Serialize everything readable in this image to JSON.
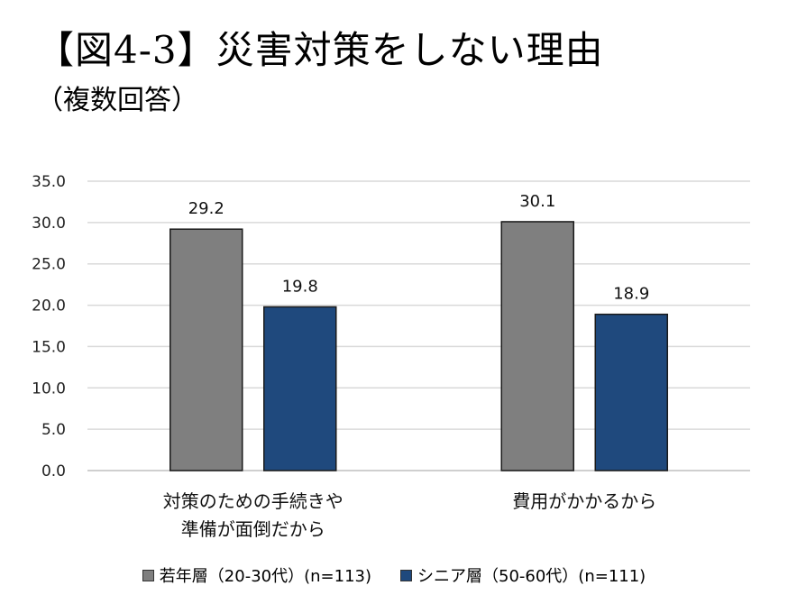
{
  "title": "【図4-3】災害対策をしない理由",
  "subtitle": "（複数回答）",
  "chart_data": {
    "type": "bar",
    "categories": [
      [
        "対策のための手続きや",
        "準備が面倒だから"
      ],
      [
        "費用がかかるから"
      ]
    ],
    "series": [
      {
        "name": "若年層（20-30代）(n=113)",
        "values": [
          29.2,
          30.1
        ],
        "color": "#7f7f7f"
      },
      {
        "name": "シニア層（50-60代）(n=111)",
        "values": [
          19.8,
          18.9
        ],
        "color": "#1f497d"
      }
    ],
    "value_labels": [
      [
        "29.2",
        "30.1"
      ],
      [
        "19.8",
        "18.9"
      ]
    ],
    "ylim": [
      0,
      35
    ],
    "yticks": [
      "0.0",
      "5.0",
      "10.0",
      "15.0",
      "20.0",
      "25.0",
      "30.0",
      "35.0"
    ],
    "grid": true,
    "legend_position": "bottom"
  }
}
